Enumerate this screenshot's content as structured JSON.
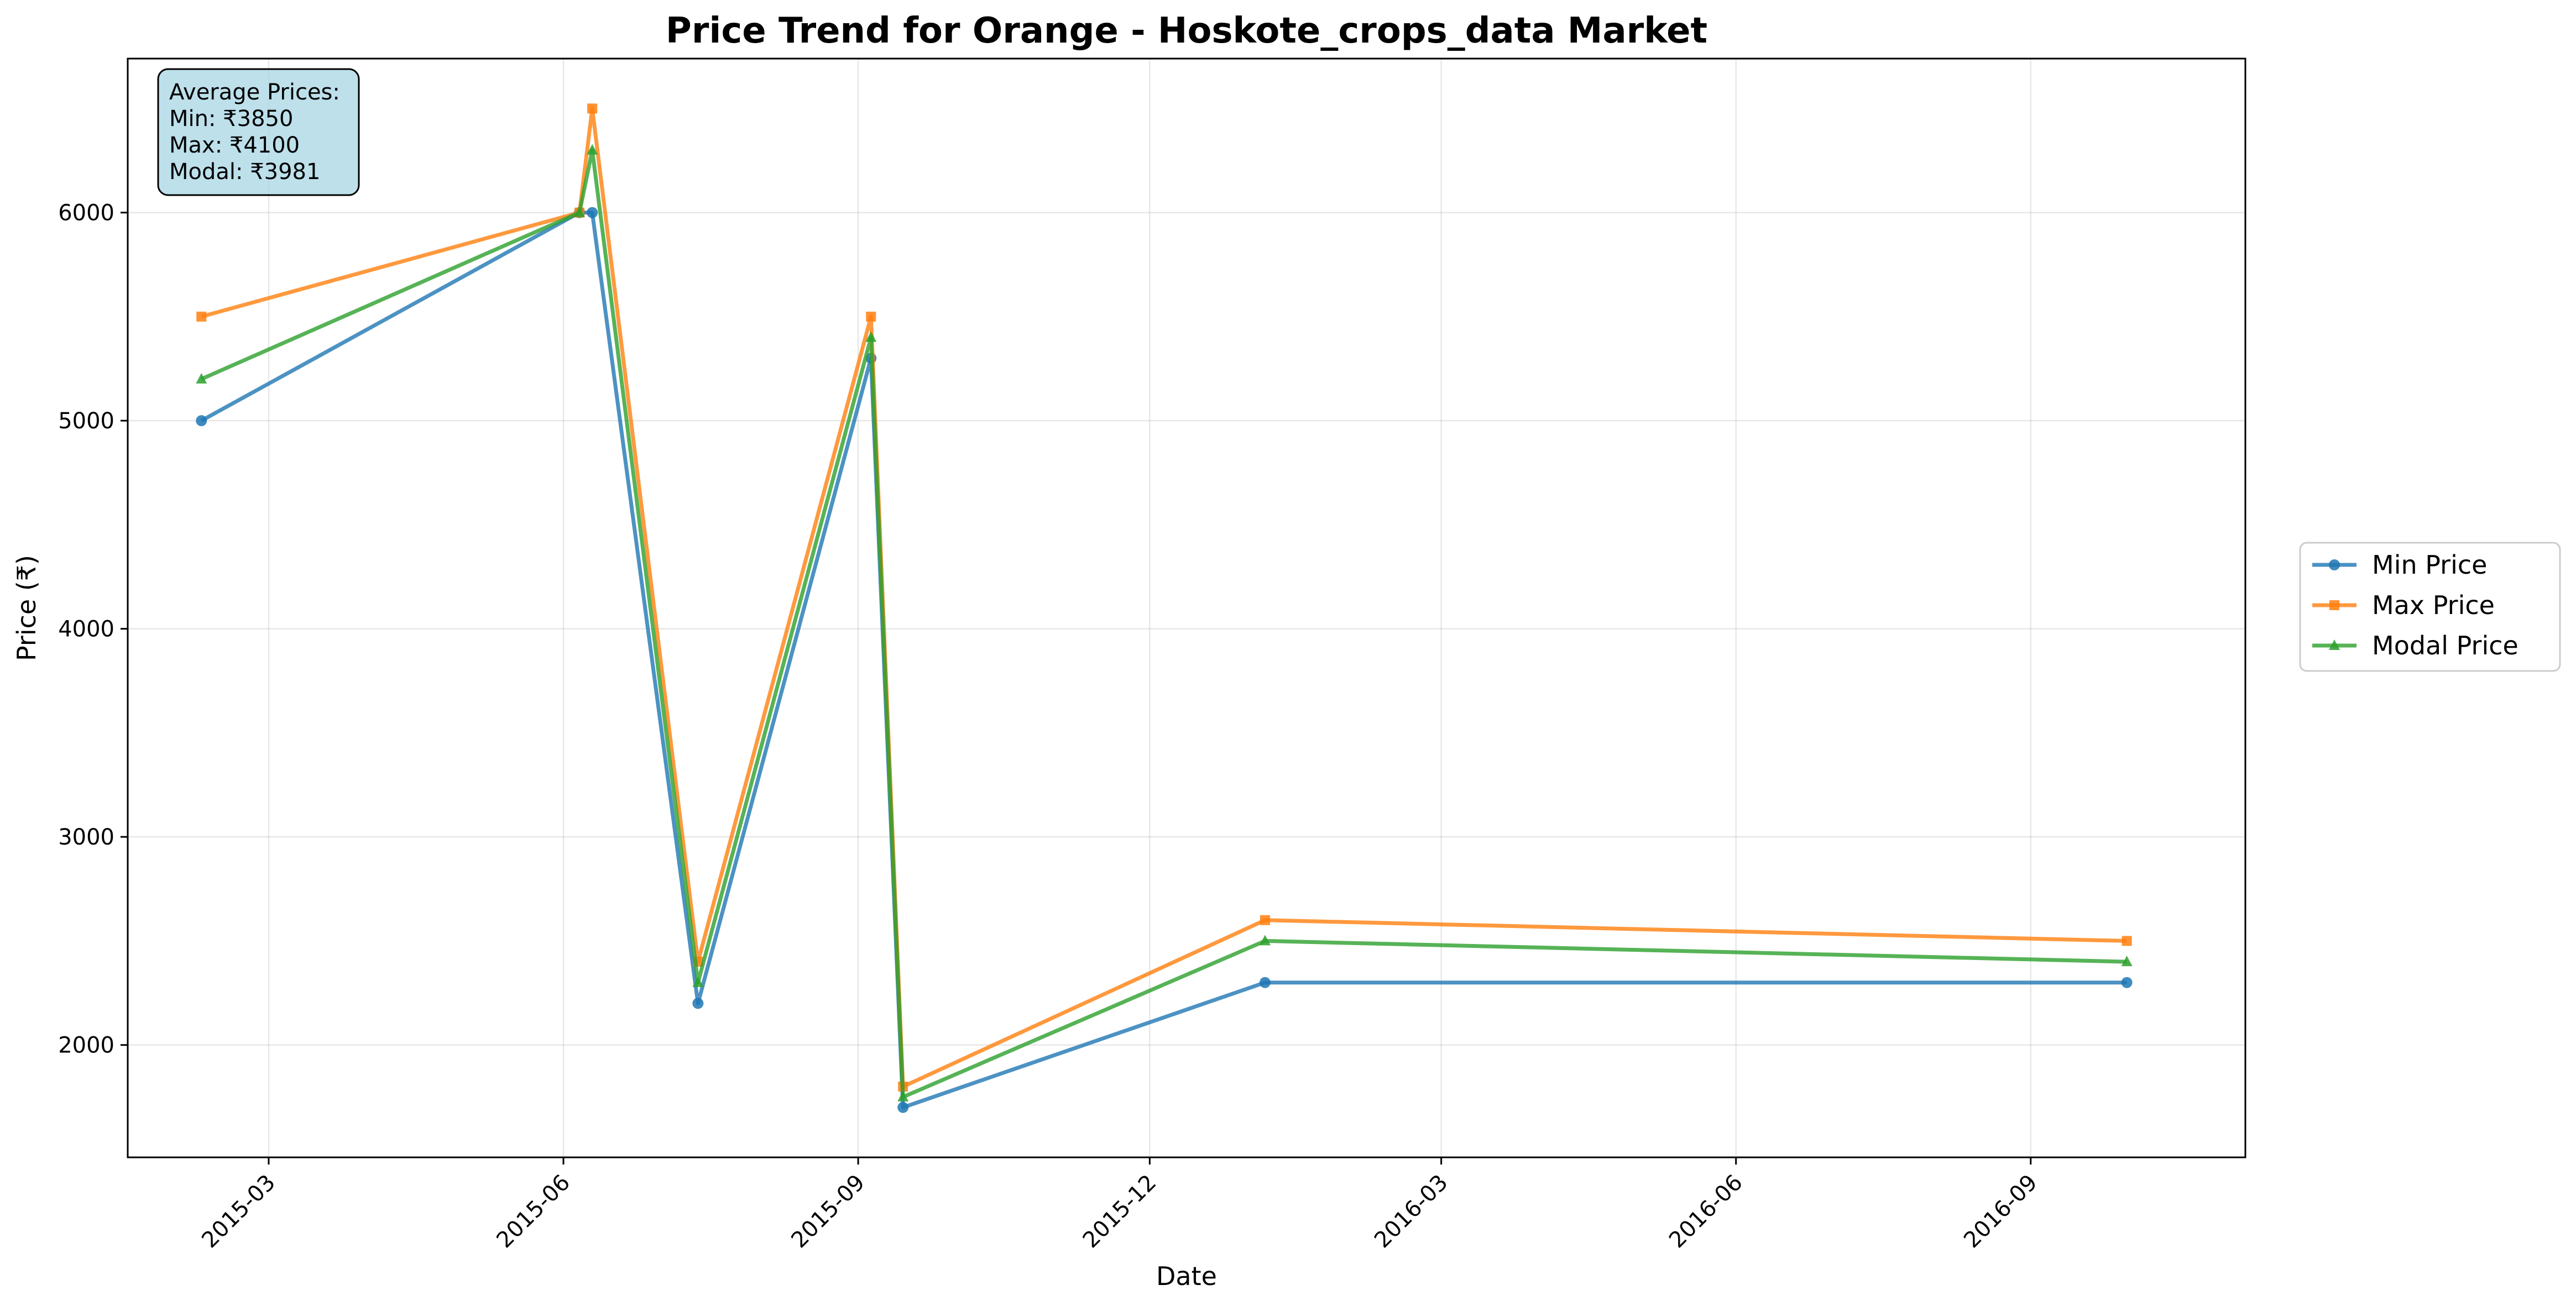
{
  "chart_data": {
    "type": "line",
    "title": "Price Trend for Orange - Hoskote_crops_data Market",
    "xlabel": "Date",
    "ylabel": "Price (₹)",
    "x_axis_type": "date",
    "xlim": [
      "2015-01-16",
      "2016-11-07"
    ],
    "ylim": [
      1460,
      6740
    ],
    "x_ticks": [
      "2015-03",
      "2015-06",
      "2015-09",
      "2015-12",
      "2016-03",
      "2016-06",
      "2016-09"
    ],
    "y_ticks": [
      2000,
      3000,
      4000,
      5000,
      6000
    ],
    "grid": true,
    "legend_position": "right, outside plot",
    "annotation": {
      "lines": [
        "Average Prices:",
        "Min: ₹3850",
        "Max: ₹4100",
        "Modal: ₹3981"
      ],
      "background": "#add8e6"
    },
    "x": [
      "2015-02-08",
      "2015-06-06",
      "2015-06-10",
      "2015-07-13",
      "2015-09-05",
      "2015-09-15",
      "2016-01-06",
      "2016-10-01"
    ],
    "series": [
      {
        "name": "Min Price",
        "color": "#1f77b4",
        "marker": "circle",
        "values": [
          5000,
          6000,
          6000,
          2200,
          5300,
          1700,
          2300,
          2300
        ],
        "points_x": [
          "2015-02-08",
          "2015-06-06",
          "2015-06-10",
          "2015-07-13",
          "2015-09-05",
          "2015-09-15",
          "2016-01-06",
          "2016-10-01"
        ]
      },
      {
        "name": "Max Price",
        "color": "#ff7f0e",
        "marker": "square",
        "values": [
          5500,
          6000,
          6500,
          2400,
          5500,
          1800,
          2600,
          2500
        ],
        "points_x": [
          "2015-02-08",
          "2015-06-06",
          "2015-06-10",
          "2015-07-13",
          "2015-09-05",
          "2015-09-15",
          "2016-01-06",
          "2016-10-01"
        ]
      },
      {
        "name": "Modal Price",
        "color": "#2ca02c",
        "marker": "triangle",
        "values": [
          5200,
          6000,
          6300,
          2300,
          5400,
          1750,
          2500,
          2400
        ],
        "points_x": [
          "2015-02-08",
          "2015-06-06",
          "2015-06-10",
          "2015-07-13",
          "2015-09-05",
          "2015-09-15",
          "2016-01-06",
          "2016-10-01"
        ]
      }
    ]
  }
}
